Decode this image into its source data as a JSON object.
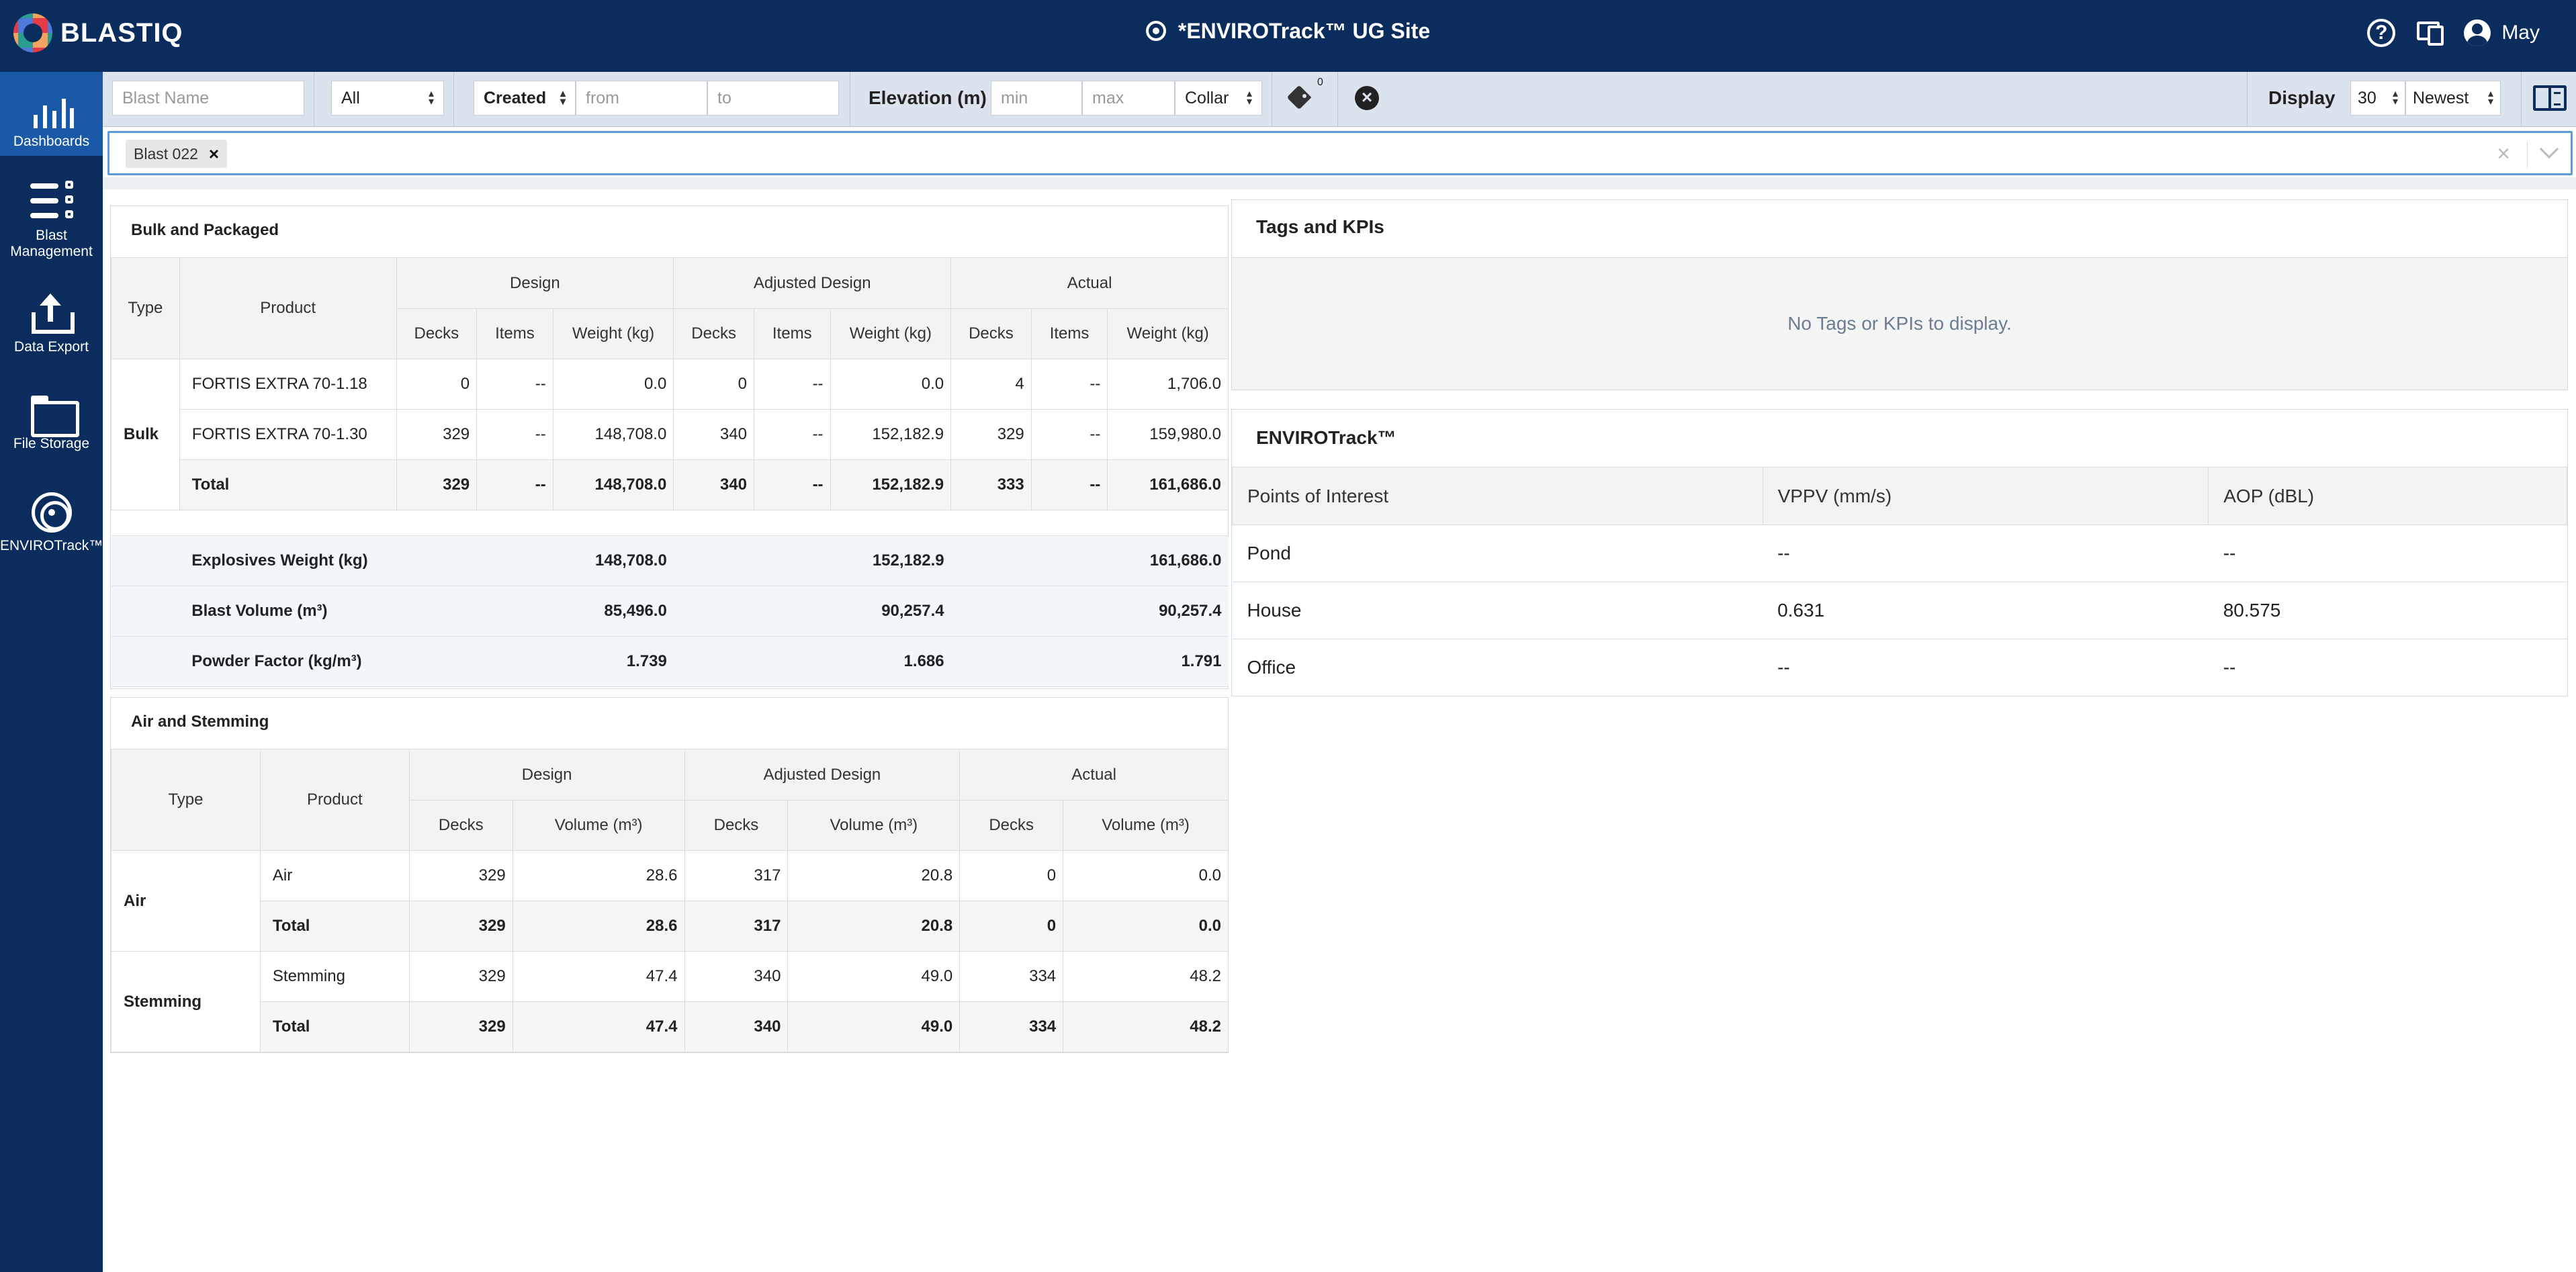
{
  "app": {
    "logo": "BLASTIQ",
    "site": "*ENVIROTrack™ UG Site",
    "user": "May"
  },
  "sidebar": {
    "items": [
      {
        "label": "Dashboards",
        "icon": "dashboards-icon"
      },
      {
        "label": "Blast Management",
        "icon": "blast-management-icon"
      },
      {
        "label": "Data Export",
        "icon": "data-export-icon"
      },
      {
        "label": "File Storage",
        "icon": "file-storage-icon"
      },
      {
        "label": "ENVIROTrack™",
        "icon": "envirotrack-icon"
      }
    ]
  },
  "filters": {
    "blast_name_placeholder": "Blast Name",
    "status": "All",
    "date_type": "Created",
    "from_placeholder": "from",
    "to_placeholder": "to",
    "elevation_label": "Elevation (m)",
    "min_placeholder": "min",
    "max_placeholder": "max",
    "elevation_ref": "Collar",
    "tag_count": "0",
    "display_label": "Display",
    "display_count": "30",
    "sort": "Newest"
  },
  "selection": {
    "chip": "Blast 022"
  },
  "bulk": {
    "title": "Bulk and Packaged",
    "headers": {
      "type": "Type",
      "product": "Product",
      "design": "Design",
      "adjusted": "Adjusted Design",
      "actual": "Actual",
      "decks": "Decks",
      "items": "Items",
      "weight": "Weight (kg)"
    },
    "group": "Bulk",
    "rows": [
      {
        "product": "FORTIS EXTRA 70-1.18",
        "v": [
          "0",
          "--",
          "0.0",
          "0",
          "--",
          "0.0",
          "4",
          "--",
          "1,706.0"
        ]
      },
      {
        "product": "FORTIS EXTRA 70-1.30",
        "v": [
          "329",
          "--",
          "148,708.0",
          "340",
          "--",
          "152,182.9",
          "329",
          "--",
          "159,980.0"
        ]
      },
      {
        "product": "Total",
        "v": [
          "329",
          "--",
          "148,708.0",
          "340",
          "--",
          "152,182.9",
          "333",
          "--",
          "161,686.0"
        ]
      }
    ],
    "summary": [
      {
        "label": "Explosives Weight (kg)",
        "v": [
          "148,708.0",
          "152,182.9",
          "161,686.0"
        ]
      },
      {
        "label": "Blast Volume (m³)",
        "v": [
          "85,496.0",
          "90,257.4",
          "90,257.4"
        ]
      },
      {
        "label": "Powder Factor (kg/m³)",
        "v": [
          "1.739",
          "1.686",
          "1.791"
        ]
      }
    ]
  },
  "air": {
    "title": "Air and Stemming",
    "headers": {
      "type": "Type",
      "product": "Product",
      "design": "Design",
      "adjusted": "Adjusted Design",
      "actual": "Actual",
      "decks": "Decks",
      "volume": "Volume (m³)"
    },
    "groups": [
      {
        "type": "Air",
        "rows": [
          {
            "product": "Air",
            "v": [
              "329",
              "28.6",
              "317",
              "20.8",
              "0",
              "0.0"
            ]
          },
          {
            "product": "Total",
            "v": [
              "329",
              "28.6",
              "317",
              "20.8",
              "0",
              "0.0"
            ]
          }
        ]
      },
      {
        "type": "Stemming",
        "rows": [
          {
            "product": "Stemming",
            "v": [
              "329",
              "47.4",
              "340",
              "49.0",
              "334",
              "48.2"
            ]
          },
          {
            "product": "Total",
            "v": [
              "329",
              "47.4",
              "340",
              "49.0",
              "334",
              "48.2"
            ]
          }
        ]
      }
    ]
  },
  "tags": {
    "title": "Tags and KPIs",
    "empty": "No Tags or KPIs to display."
  },
  "enviro": {
    "title": "ENVIROTrack™",
    "headers": [
      "Points of Interest",
      "VPPV (mm/s)",
      "AOP (dBL)"
    ],
    "rows": [
      [
        "Pond",
        "--",
        "--"
      ],
      [
        "House",
        "0.631",
        "80.575"
      ],
      [
        "Office",
        "--",
        "--"
      ]
    ]
  }
}
